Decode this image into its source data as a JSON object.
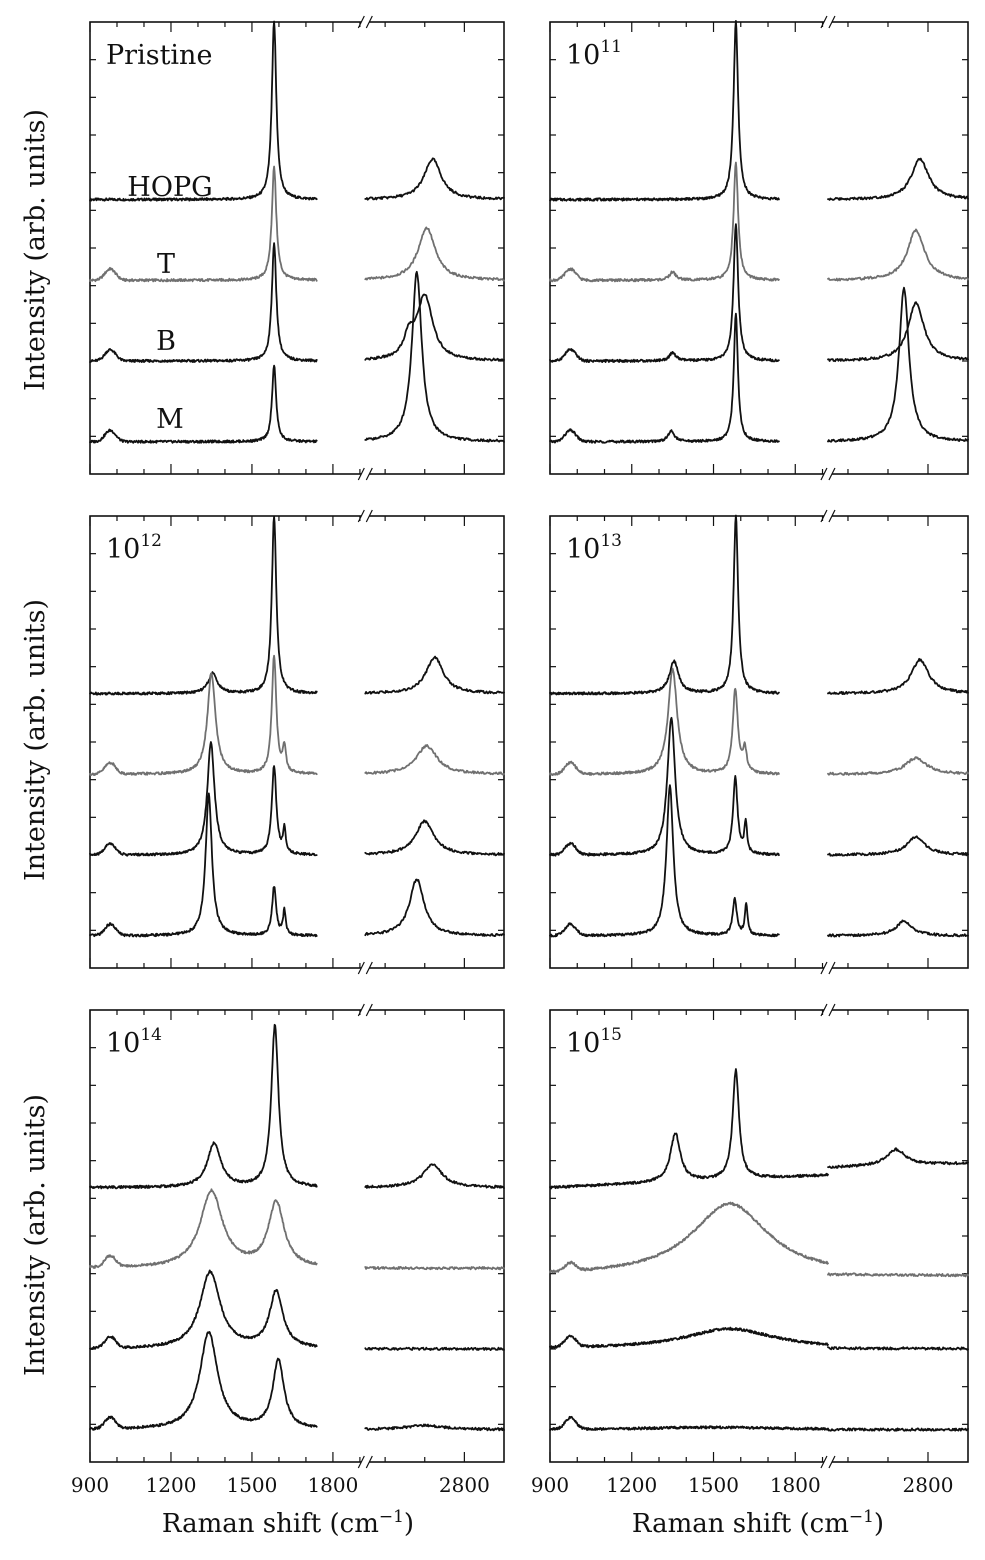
{
  "figure": {
    "ylabel": "Intensity (arb. units)",
    "xlabel_main": "Raman shift (cm",
    "xlabel_exp": "−1",
    "xlabel_close": ")"
  },
  "chart_data": [
    {
      "type": "line",
      "title": "Pristine",
      "title_base": "Pristine",
      "title_exp": "",
      "series_labels": [
        "HOPG",
        "T",
        "B",
        "M"
      ],
      "show_xticklabels": false,
      "xlim_left": [
        900,
        1920
      ],
      "xlim_right": [
        2550,
        2900
      ],
      "left_end": 1740,
      "right_start": 2550,
      "xticks_left": [
        900,
        1200,
        1500,
        1800
      ],
      "xticks_right": [
        2800
      ],
      "series": [
        {
          "color": "#111111",
          "offset": 3,
          "peaks": [
            {
              "x": 1582,
              "w": 10,
              "h": 2.2
            },
            {
              "x": 2720,
              "w": 26,
              "h": 0.5
            }
          ],
          "hump": 0
        },
        {
          "color": "#707070",
          "offset": 2,
          "peaks": [
            {
              "x": 1582,
              "w": 10,
              "h": 1.4
            },
            {
              "x": 2705,
              "w": 26,
              "h": 0.65
            }
          ],
          "hump": 0.14
        },
        {
          "color": "#111111",
          "offset": 1,
          "peaks": [
            {
              "x": 1582,
              "w": 10,
              "h": 1.45
            },
            {
              "x": 2700,
              "w": 24,
              "h": 0.8
            },
            {
              "x": 2660,
              "w": 15,
              "h": 0.25
            }
          ],
          "hump": 0.14
        },
        {
          "color": "#111111",
          "offset": 0,
          "peaks": [
            {
              "x": 1582,
              "w": 9,
              "h": 0.95
            },
            {
              "x": 2680,
              "w": 15,
              "h": 2.1
            }
          ],
          "hump": 0.14
        }
      ],
      "ylim": [
        -0.4,
        5.2
      ]
    },
    {
      "type": "line",
      "title": "10^11",
      "title_base": "10",
      "title_exp": "11",
      "series_labels": [],
      "show_xticklabels": false,
      "xlim_left": [
        900,
        1920
      ],
      "xlim_right": [
        2550,
        2900
      ],
      "left_end": 1740,
      "right_start": 2550,
      "xticks_left": [
        900,
        1200,
        1500,
        1800
      ],
      "xticks_right": [
        2800
      ],
      "series": [
        {
          "color": "#111111",
          "offset": 3,
          "peaks": [
            {
              "x": 1582,
              "w": 10,
              "h": 2.2
            },
            {
              "x": 2780,
              "w": 26,
              "h": 0.5
            }
          ],
          "hump": 0
        },
        {
          "color": "#707070",
          "offset": 2,
          "peaks": [
            {
              "x": 1582,
              "w": 10,
              "h": 1.45
            },
            {
              "x": 2770,
              "w": 26,
              "h": 0.62
            },
            {
              "x": 1350,
              "w": 14,
              "h": 0.1
            }
          ],
          "hump": 0.14
        },
        {
          "color": "#111111",
          "offset": 1,
          "peaks": [
            {
              "x": 1582,
              "w": 10,
              "h": 1.7
            },
            {
              "x": 2770,
              "w": 24,
              "h": 0.72
            },
            {
              "x": 1350,
              "w": 14,
              "h": 0.1
            }
          ],
          "hump": 0.14
        },
        {
          "color": "#111111",
          "offset": 0,
          "peaks": [
            {
              "x": 1582,
              "w": 9,
              "h": 1.6
            },
            {
              "x": 2740,
              "w": 15,
              "h": 1.9
            },
            {
              "x": 1345,
              "w": 14,
              "h": 0.13
            }
          ],
          "hump": 0.14
        }
      ],
      "ylim": [
        -0.4,
        5.2
      ]
    },
    {
      "type": "line",
      "title": "10^12",
      "title_base": "10",
      "title_exp": "12",
      "series_labels": [],
      "show_xticklabels": false,
      "xlim_left": [
        900,
        1920
      ],
      "xlim_right": [
        2550,
        2900
      ],
      "left_end": 1740,
      "right_start": 2550,
      "xticks_left": [
        900,
        1200,
        1500,
        1800
      ],
      "xticks_right": [
        2800
      ],
      "series": [
        {
          "color": "#111111",
          "offset": 3,
          "peaks": [
            {
              "x": 1582,
              "w": 10,
              "h": 2.2
            },
            {
              "x": 2725,
              "w": 26,
              "h": 0.45
            },
            {
              "x": 1355,
              "w": 20,
              "h": 0.25
            }
          ],
          "hump": 0
        },
        {
          "color": "#707070",
          "offset": 2,
          "peaks": [
            {
              "x": 1582,
              "w": 10,
              "h": 1.45
            },
            {
              "x": 2705,
              "w": 32,
              "h": 0.35
            },
            {
              "x": 1350,
              "w": 18,
              "h": 1.25
            },
            {
              "x": 1620,
              "w": 7,
              "h": 0.3
            }
          ],
          "hump": 0.14
        },
        {
          "color": "#111111",
          "offset": 1,
          "peaks": [
            {
              "x": 1582,
              "w": 10,
              "h": 1.1
            },
            {
              "x": 2700,
              "w": 28,
              "h": 0.42
            },
            {
              "x": 1348,
              "w": 16,
              "h": 1.4
            },
            {
              "x": 1620,
              "w": 6,
              "h": 0.3
            }
          ],
          "hump": 0.14
        },
        {
          "color": "#111111",
          "offset": 0,
          "peaks": [
            {
              "x": 1582,
              "w": 9,
              "h": 0.6
            },
            {
              "x": 2680,
              "w": 22,
              "h": 0.7
            },
            {
              "x": 1340,
              "w": 14,
              "h": 1.75
            },
            {
              "x": 1620,
              "w": 6,
              "h": 0.3
            }
          ],
          "hump": 0.14
        }
      ],
      "ylim": [
        -0.4,
        5.2
      ]
    },
    {
      "type": "line",
      "title": "10^13",
      "title_base": "10",
      "title_exp": "13",
      "series_labels": [],
      "show_xticklabels": false,
      "xlim_left": [
        900,
        1920
      ],
      "xlim_right": [
        2550,
        2900
      ],
      "left_end": 1740,
      "right_start": 2550,
      "xticks_left": [
        900,
        1200,
        1500,
        1800
      ],
      "xticks_right": [
        2800
      ],
      "series": [
        {
          "color": "#111111",
          "offset": 3,
          "peaks": [
            {
              "x": 1582,
              "w": 10,
              "h": 2.2
            },
            {
              "x": 2780,
              "w": 26,
              "h": 0.42
            },
            {
              "x": 1355,
              "w": 20,
              "h": 0.4
            }
          ],
          "hump": 0
        },
        {
          "color": "#707070",
          "offset": 2,
          "peaks": [
            {
              "x": 1580,
              "w": 11,
              "h": 1.05
            },
            {
              "x": 2770,
              "w": 32,
              "h": 0.2
            },
            {
              "x": 1350,
              "w": 20,
              "h": 1.3
            },
            {
              "x": 1615,
              "w": 8,
              "h": 0.28
            }
          ],
          "hump": 0.14
        },
        {
          "color": "#111111",
          "offset": 1,
          "peaks": [
            {
              "x": 1580,
              "w": 10,
              "h": 0.95
            },
            {
              "x": 2770,
              "w": 28,
              "h": 0.22
            },
            {
              "x": 1345,
              "w": 17,
              "h": 1.7
            },
            {
              "x": 1618,
              "w": 6,
              "h": 0.38
            }
          ],
          "hump": 0.14
        },
        {
          "color": "#111111",
          "offset": 0,
          "peaks": [
            {
              "x": 1578,
              "w": 9,
              "h": 0.45
            },
            {
              "x": 2740,
              "w": 24,
              "h": 0.18
            },
            {
              "x": 1340,
              "w": 15,
              "h": 1.85
            },
            {
              "x": 1620,
              "w": 6,
              "h": 0.38
            }
          ],
          "hump": 0.14
        }
      ],
      "ylim": [
        -0.4,
        5.2
      ]
    },
    {
      "type": "line",
      "title": "10^14",
      "title_base": "10",
      "title_exp": "14",
      "series_labels": [],
      "show_xticklabels": true,
      "xlim_left": [
        900,
        1920
      ],
      "xlim_right": [
        2550,
        2900
      ],
      "left_end": 1740,
      "right_start": 2550,
      "xticks_left": [
        900,
        1200,
        1500,
        1800
      ],
      "xticks_right": [
        2800
      ],
      "series": [
        {
          "color": "#111111",
          "offset": 3,
          "peaks": [
            {
              "x": 1585,
              "w": 16,
              "h": 2.0
            },
            {
              "x": 1360,
              "w": 30,
              "h": 0.55
            },
            {
              "x": 2720,
              "w": 30,
              "h": 0.28
            }
          ],
          "hump": 0
        },
        {
          "color": "#707070",
          "offset": 2,
          "peaks": [
            {
              "x": 1350,
              "w": 50,
              "h": 0.95
            },
            {
              "x": 1590,
              "w": 35,
              "h": 0.8
            }
          ],
          "hump": 0.14
        },
        {
          "color": "#111111",
          "offset": 1,
          "peaks": [
            {
              "x": 1345,
              "w": 45,
              "h": 0.95
            },
            {
              "x": 1590,
              "w": 30,
              "h": 0.7
            }
          ],
          "hump": 0.14
        },
        {
          "color": "#111111",
          "offset": 0,
          "peaks": [
            {
              "x": 1340,
              "w": 40,
              "h": 1.2
            },
            {
              "x": 1598,
              "w": 25,
              "h": 0.85
            },
            {
              "x": 2700,
              "w": 60,
              "h": 0.05
            }
          ],
          "hump": 0.14
        }
      ],
      "ylim": [
        -0.4,
        5.2
      ]
    },
    {
      "type": "line",
      "title": "10^15",
      "title_base": "10",
      "title_exp": "15",
      "series_labels": [],
      "show_xticklabels": true,
      "xlim_left": [
        900,
        1920
      ],
      "xlim_right": [
        2550,
        2900
      ],
      "left_end": 1920,
      "right_start": 2550,
      "xticks_left": [
        900,
        1200,
        1500,
        1800
      ],
      "xticks_right": [
        2800
      ],
      "series": [
        {
          "color": "#111111",
          "offset": 3,
          "peaks": [
            {
              "x": 1582,
              "w": 14,
              "h": 1.35
            },
            {
              "x": 1360,
              "w": 22,
              "h": 0.6
            },
            {
              "x": 2720,
              "w": 28,
              "h": 0.2
            }
          ],
          "hump": 0,
          "slope": 0.12
        },
        {
          "color": "#707070",
          "offset": 1.9,
          "peaks": [
            {
              "x": 1560,
              "w": 170,
              "h": 0.9
            }
          ],
          "hump": 0.1
        },
        {
          "color": "#111111",
          "offset": 1,
          "peaks": [
            {
              "x": 1560,
              "w": 200,
              "h": 0.25
            }
          ],
          "hump": 0.14
        },
        {
          "color": "#111111",
          "offset": 0,
          "peaks": [
            {
              "x": 1500,
              "w": 300,
              "h": 0.03
            }
          ],
          "hump": 0.14
        }
      ],
      "ylim": [
        -0.4,
        5.2
      ]
    }
  ]
}
